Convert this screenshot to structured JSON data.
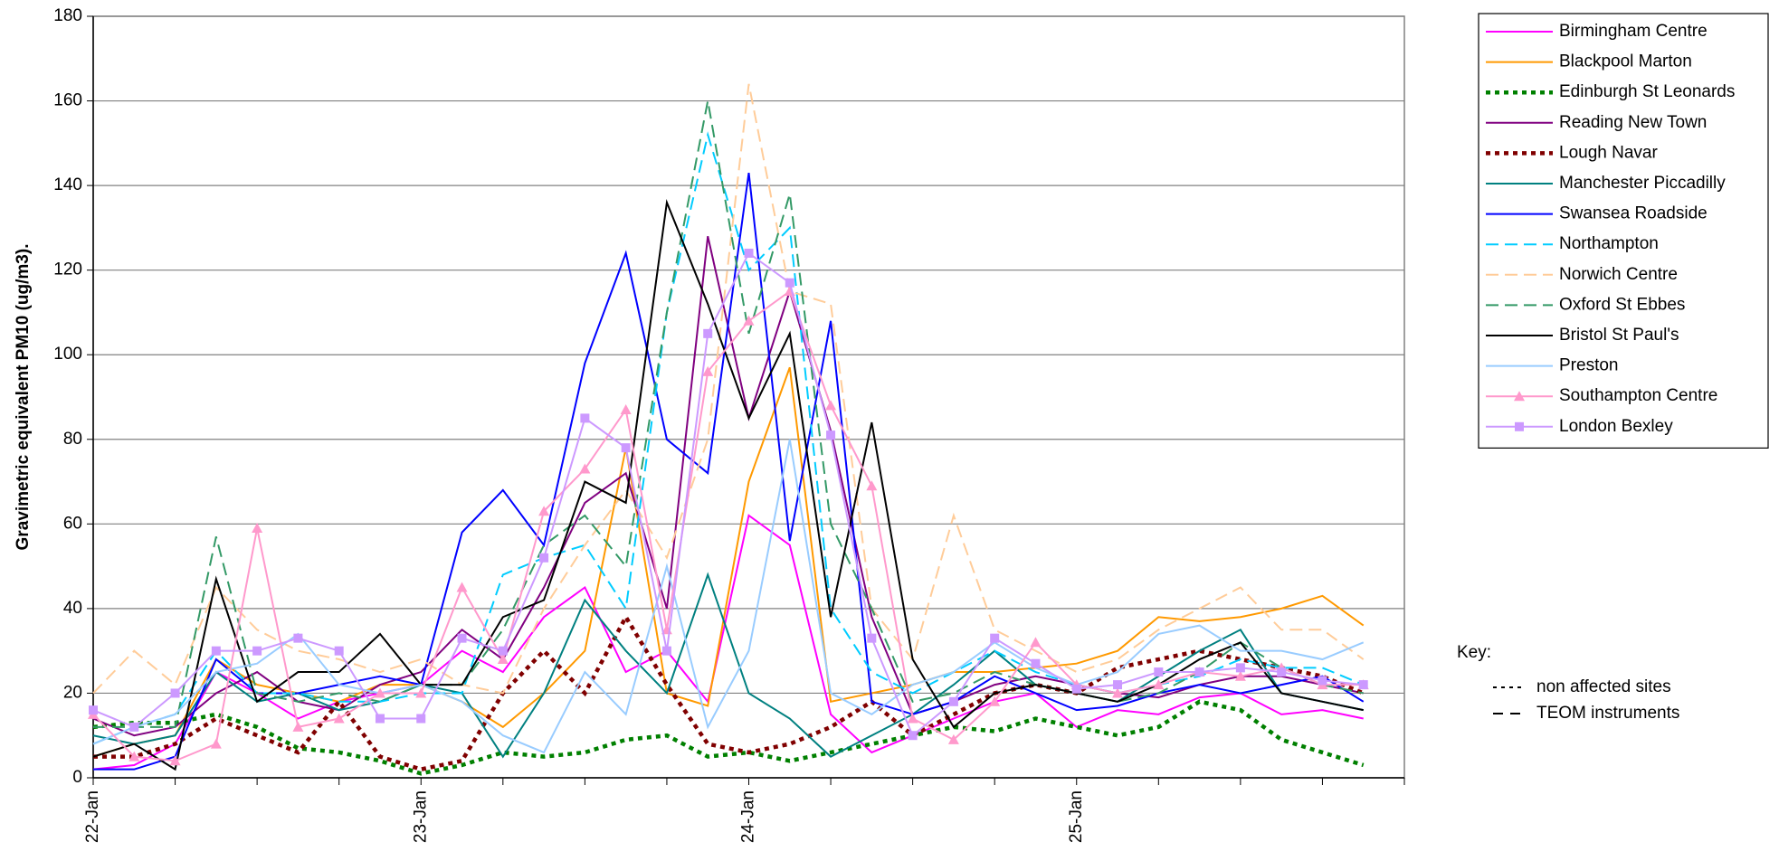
{
  "chart_data": {
    "type": "line",
    "y_label": "Gravimetric equivalent PM10 (ug/m3).",
    "categories": [
      "22-Jan",
      null,
      null,
      null,
      null,
      null,
      null,
      null,
      "23-Jan",
      null,
      null,
      null,
      null,
      null,
      null,
      null,
      "24-Jan",
      null,
      null,
      null,
      null,
      null,
      null,
      null,
      "25-Jan",
      null,
      null,
      null,
      null,
      null,
      null,
      null
    ],
    "ylim": [
      0,
      180
    ],
    "yticks": [
      0,
      20,
      40,
      60,
      80,
      100,
      120,
      140,
      160,
      180
    ],
    "grid": true,
    "legend": "right",
    "series": [
      {
        "name": "Birmingham Centre",
        "color": "#ff00ff",
        "style": "solid",
        "values": [
          2,
          3,
          8,
          25,
          20,
          14,
          18,
          20,
          22,
          30,
          25,
          38,
          45,
          25,
          30,
          18,
          62,
          55,
          15,
          6,
          10,
          14,
          18,
          20,
          12,
          16,
          15,
          19,
          20,
          15,
          16,
          14
        ]
      },
      {
        "name": "Blackpool Marton",
        "color": "#ff9900",
        "style": "solid",
        "values": [
          5,
          8,
          10,
          28,
          22,
          20,
          18,
          22,
          22,
          18,
          12,
          20,
          30,
          78,
          20,
          17,
          70,
          97,
          18,
          20,
          22,
          25,
          25,
          26,
          27,
          30,
          38,
          37,
          38,
          40,
          43,
          36
        ]
      },
      {
        "name": "Edinburgh St Leonards",
        "color": "#008000",
        "style": "dotted",
        "values": [
          12,
          13,
          13,
          15,
          12,
          7,
          6,
          4,
          1,
          3,
          6,
          5,
          6,
          9,
          10,
          5,
          6,
          4,
          6,
          8,
          10,
          12,
          11,
          14,
          12,
          10,
          12,
          18,
          16,
          9,
          6,
          3
        ]
      },
      {
        "name": "Reading New Town",
        "color": "#800080",
        "style": "solid",
        "values": [
          14,
          10,
          12,
          20,
          25,
          18,
          16,
          22,
          25,
          35,
          28,
          45,
          65,
          72,
          40,
          128,
          85,
          115,
          82,
          38,
          15,
          18,
          22,
          24,
          22,
          20,
          19,
          22,
          24,
          24,
          22,
          20
        ]
      },
      {
        "name": "Lough Navar",
        "color": "#800000",
        "style": "dotted",
        "values": [
          5,
          5,
          8,
          14,
          10,
          6,
          18,
          5,
          2,
          4,
          20,
          30,
          20,
          38,
          22,
          8,
          6,
          8,
          12,
          18,
          10,
          15,
          20,
          22,
          20,
          26,
          28,
          30,
          28,
          26,
          24,
          20
        ]
      },
      {
        "name": "Manchester Piccadilly",
        "color": "#008080",
        "style": "solid",
        "values": [
          10,
          8,
          10,
          25,
          18,
          20,
          16,
          18,
          22,
          20,
          5,
          20,
          42,
          30,
          20,
          48,
          20,
          14,
          5,
          10,
          15,
          22,
          30,
          22,
          20,
          18,
          24,
          30,
          35,
          20,
          18,
          16
        ]
      },
      {
        "name": "Swansea Roadside",
        "color": "#0000ff",
        "style": "solid",
        "values": [
          2,
          2,
          5,
          28,
          20,
          20,
          22,
          24,
          22,
          58,
          68,
          55,
          98,
          124,
          80,
          72,
          143,
          56,
          108,
          18,
          15,
          18,
          24,
          20,
          16,
          17,
          20,
          22,
          20,
          22,
          24,
          18
        ]
      },
      {
        "name": "Northampton",
        "color": "#00ccff",
        "style": "dashed",
        "values": [
          8,
          12,
          15,
          30,
          20,
          20,
          18,
          18,
          20,
          20,
          48,
          52,
          55,
          40,
          110,
          152,
          120,
          130,
          40,
          25,
          20,
          25,
          30,
          25,
          22,
          20,
          22,
          24,
          28,
          26,
          26,
          22
        ]
      },
      {
        "name": "Norwich Centre",
        "color": "#ffcc99",
        "style": "dashed",
        "values": [
          20,
          30,
          22,
          45,
          35,
          30,
          28,
          25,
          28,
          22,
          20,
          40,
          55,
          68,
          52,
          80,
          164,
          115,
          112,
          40,
          28,
          62,
          35,
          30,
          25,
          28,
          35,
          40,
          45,
          35,
          35,
          28
        ]
      },
      {
        "name": "Oxford St Ebbes",
        "color": "#339966",
        "style": "dashed",
        "values": [
          12,
          12,
          12,
          57,
          20,
          18,
          20,
          18,
          22,
          22,
          35,
          55,
          62,
          50,
          110,
          160,
          105,
          138,
          60,
          40,
          18,
          20,
          25,
          22,
          20,
          18,
          20,
          25,
          32,
          26,
          22,
          20
        ]
      },
      {
        "name": "Bristol St Paul's",
        "color": "#000000",
        "style": "solid",
        "values": [
          5,
          8,
          2,
          47,
          18,
          25,
          25,
          34,
          22,
          22,
          38,
          42,
          70,
          65,
          136,
          112,
          85,
          105,
          38,
          84,
          28,
          12,
          20,
          22,
          20,
          18,
          22,
          28,
          32,
          20,
          18,
          16
        ]
      },
      {
        "name": "Preston",
        "color": "#99ccff",
        "style": "solid",
        "values": [
          8,
          12,
          15,
          25,
          27,
          34,
          22,
          20,
          22,
          18,
          10,
          6,
          25,
          15,
          50,
          12,
          30,
          80,
          20,
          15,
          22,
          25,
          32,
          26,
          22,
          25,
          34,
          36,
          30,
          30,
          28,
          32
        ]
      },
      {
        "name": "Southampton Centre",
        "color": "#ff99cc",
        "style": "solid",
        "marker": "triangle",
        "values": [
          15,
          5,
          4,
          8,
          59,
          12,
          14,
          20,
          20,
          45,
          28,
          63,
          73,
          87,
          35,
          96,
          108,
          115,
          88,
          69,
          14,
          9,
          18,
          32,
          22,
          20,
          22,
          25,
          24,
          26,
          22,
          22
        ]
      },
      {
        "name": "London Bexley",
        "color": "#cc99ff",
        "style": "solid",
        "marker": "square",
        "values": [
          16,
          12,
          20,
          30,
          30,
          33,
          30,
          14,
          14,
          33,
          30,
          52,
          85,
          78,
          30,
          105,
          124,
          117,
          81,
          33,
          10,
          18,
          33,
          27,
          21,
          22,
          25,
          25,
          26,
          25,
          23,
          22
        ]
      }
    ],
    "key_title": "Key:",
    "key_entries": [
      {
        "label": "non affected sites",
        "style": "dotted"
      },
      {
        "label": "TEOM instruments",
        "style": "dashed"
      }
    ]
  }
}
